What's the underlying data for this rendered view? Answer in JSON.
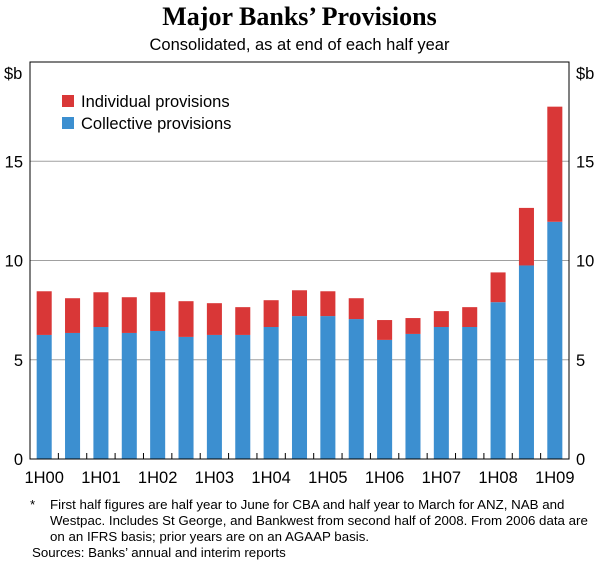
{
  "chart_data": {
    "type": "bar",
    "stacked": true,
    "title": "Major Banks’ Provisions",
    "subtitle": "Consolidated, as at end of each half year",
    "y_unit_left": "$b",
    "y_unit_right": "$b",
    "ylim": [
      0,
      20
    ],
    "yticks": [
      0,
      5,
      10,
      15
    ],
    "grid": true,
    "legend_position": "top-left",
    "x_tick_labels": [
      "1H00",
      "1H01",
      "1H02",
      "1H03",
      "1H04",
      "1H05",
      "1H06",
      "1H07",
      "1H08",
      "1H09"
    ],
    "categories": [
      "1H00",
      "2H00",
      "1H01",
      "2H01",
      "1H02",
      "2H02",
      "1H03",
      "2H03",
      "1H04",
      "2H04",
      "1H05",
      "2H05",
      "1H06",
      "2H06",
      "1H07",
      "2H07",
      "1H08",
      "2H08",
      "1H09"
    ],
    "series": [
      {
        "name": "Collective provisions",
        "color": "#3c8fd0",
        "values": [
          6.25,
          6.35,
          6.65,
          6.35,
          6.45,
          6.15,
          6.25,
          6.25,
          6.65,
          7.2,
          7.2,
          7.05,
          6.0,
          6.3,
          6.65,
          6.65,
          7.9,
          9.75,
          11.95
        ]
      },
      {
        "name": "Individual provisions",
        "color": "#d93737",
        "values": [
          2.2,
          1.75,
          1.75,
          1.8,
          1.95,
          1.8,
          1.6,
          1.4,
          1.35,
          1.3,
          1.25,
          1.05,
          1.0,
          0.8,
          0.8,
          1.0,
          1.5,
          2.9,
          5.8
        ]
      }
    ]
  },
  "notes": {
    "footnote_mark": "*",
    "footnote": "First half figures are half year to June for CBA and half year to March for ANZ, NAB and Westpac. Includes St George, and Bankwest from second half of 2008. From 2006 data are on an IFRS basis; prior years are on an AGAAP basis.",
    "sources": "Sources: Banks’ annual and interim reports"
  }
}
